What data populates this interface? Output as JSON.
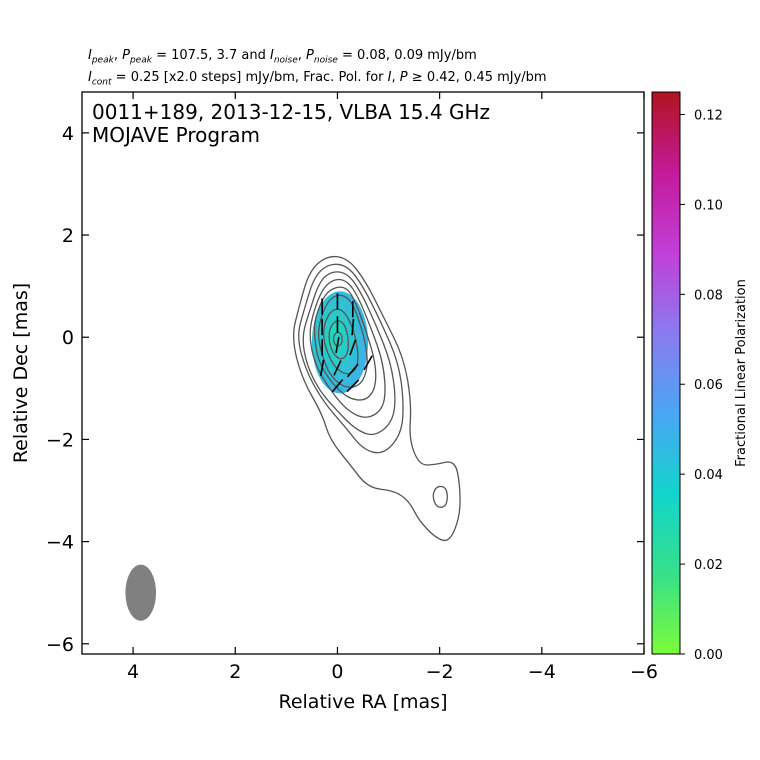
{
  "header": {
    "line1": {
      "i_peak_sym": "I",
      "i_peak_sub": "peak",
      "p_peak_sym": "P",
      "p_peak_sub": "peak",
      "peak_values": "= 107.5, 3.7 and",
      "i_noise_sym": "I",
      "i_noise_sub": "noise",
      "p_noise_sym": "P",
      "p_noise_sub": "noise",
      "noise_values": "= 0.08, 0.09 mJy/bm"
    },
    "line2": {
      "i_cont_sym": "I",
      "i_cont_sub": "cont",
      "cont_text": "= 0.25 [x2.0 steps] mJy/bm, Frac. Pol. for",
      "i_sym": "I",
      "p_sym": "P",
      "geq": "≥",
      "frac_text": "0.42, 0.45 mJy/bm"
    }
  },
  "chart_data": {
    "type": "contour",
    "title_line1": "0011+189, 2013-12-15, VLBA 15.4 GHz",
    "title_line2": "MOJAVE Program",
    "xlabel": "Relative RA [mas]",
    "ylabel": "Relative Dec [mas]",
    "xlim": [
      5,
      -6
    ],
    "ylim": [
      -6.2,
      4.8
    ],
    "x_ticks": [
      4,
      2,
      0,
      -2,
      -4,
      -6
    ],
    "x_tick_labels": [
      "4",
      "2",
      "0",
      "−2",
      "−4",
      "−6"
    ],
    "y_ticks": [
      4,
      2,
      0,
      -2,
      -4,
      -6
    ],
    "y_tick_labels": [
      "4",
      "2",
      "0",
      "−2",
      "−4",
      "−6"
    ],
    "contours": [
      {
        "level": 1,
        "points": [
          [
            0.75,
            0.6
          ],
          [
            0.55,
            1.3
          ],
          [
            0.2,
            1.6
          ],
          [
            -0.2,
            1.55
          ],
          [
            -0.55,
            1.1
          ],
          [
            -0.9,
            0.4
          ],
          [
            -1.3,
            -0.4
          ],
          [
            -1.45,
            -1.3
          ],
          [
            -1.4,
            -2.0
          ],
          [
            -1.6,
            -2.5
          ],
          [
            -1.9,
            -2.5
          ],
          [
            -2.3,
            -2.4
          ],
          [
            -2.4,
            -2.9
          ],
          [
            -2.4,
            -3.5
          ],
          [
            -2.2,
            -4.0
          ],
          [
            -1.95,
            -3.95
          ],
          [
            -1.6,
            -3.6
          ],
          [
            -1.4,
            -3.2
          ],
          [
            -1.1,
            -3.0
          ],
          [
            -0.6,
            -2.95
          ],
          [
            -0.25,
            -2.5
          ],
          [
            0.15,
            -2.0
          ],
          [
            0.3,
            -1.5
          ],
          [
            0.7,
            -0.8
          ],
          [
            0.9,
            0.0
          ]
        ]
      },
      {
        "level": 2,
        "points": [
          [
            -1.95,
            -2.9
          ],
          [
            -2.15,
            -2.95
          ],
          [
            -2.15,
            -3.3
          ],
          [
            -1.95,
            -3.35
          ],
          [
            -1.85,
            -3.1
          ]
        ]
      },
      {
        "level": 3,
        "points": [
          [
            0.65,
            0.55
          ],
          [
            0.45,
            1.2
          ],
          [
            0.15,
            1.45
          ],
          [
            -0.2,
            1.4
          ],
          [
            -0.5,
            1.0
          ],
          [
            -0.85,
            0.3
          ],
          [
            -1.2,
            -0.5
          ],
          [
            -1.3,
            -1.3
          ],
          [
            -1.25,
            -1.9
          ],
          [
            -0.9,
            -2.3
          ],
          [
            -0.5,
            -2.2
          ],
          [
            -0.15,
            -1.75
          ],
          [
            0.25,
            -1.3
          ],
          [
            0.6,
            -0.7
          ],
          [
            0.8,
            0.0
          ]
        ]
      },
      {
        "level": 4,
        "points": [
          [
            0.55,
            0.5
          ],
          [
            0.35,
            1.1
          ],
          [
            0.1,
            1.3
          ],
          [
            -0.2,
            1.25
          ],
          [
            -0.45,
            0.9
          ],
          [
            -0.75,
            0.25
          ],
          [
            -1.05,
            -0.5
          ],
          [
            -1.15,
            -1.25
          ],
          [
            -1.05,
            -1.7
          ],
          [
            -0.7,
            -1.95
          ],
          [
            -0.35,
            -1.8
          ],
          [
            0.0,
            -1.45
          ],
          [
            0.35,
            -1.05
          ],
          [
            0.6,
            -0.55
          ],
          [
            0.7,
            0.0
          ]
        ]
      },
      {
        "level": 5,
        "points": [
          [
            0.5,
            0.4
          ],
          [
            0.3,
            0.95
          ],
          [
            0.05,
            1.15
          ],
          [
            -0.2,
            1.1
          ],
          [
            -0.4,
            0.8
          ],
          [
            -0.65,
            0.2
          ],
          [
            -0.9,
            -0.5
          ],
          [
            -0.95,
            -1.2
          ],
          [
            -0.8,
            -1.5
          ],
          [
            -0.5,
            -1.6
          ],
          [
            -0.15,
            -1.4
          ],
          [
            0.2,
            -0.95
          ],
          [
            0.45,
            -0.5
          ],
          [
            0.55,
            0.0
          ]
        ]
      },
      {
        "level": 6,
        "points": [
          [
            0.45,
            0.35
          ],
          [
            0.25,
            0.85
          ],
          [
            0.0,
            1.0
          ],
          [
            -0.2,
            0.95
          ],
          [
            -0.35,
            0.7
          ],
          [
            -0.55,
            0.15
          ],
          [
            -0.75,
            -0.5
          ],
          [
            -0.75,
            -1.0
          ],
          [
            -0.55,
            -1.25
          ],
          [
            -0.2,
            -1.2
          ],
          [
            0.15,
            -0.85
          ],
          [
            0.38,
            -0.45
          ],
          [
            0.45,
            0.0
          ]
        ]
      },
      {
        "level": 7,
        "points": [
          [
            0.35,
            0.3
          ],
          [
            0.2,
            0.7
          ],
          [
            -0.02,
            0.85
          ],
          [
            -0.25,
            0.75
          ],
          [
            -0.4,
            0.4
          ],
          [
            -0.55,
            -0.1
          ],
          [
            -0.6,
            -0.6
          ],
          [
            -0.45,
            -0.95
          ],
          [
            -0.15,
            -1.0
          ],
          [
            0.15,
            -0.75
          ],
          [
            0.3,
            -0.35
          ],
          [
            0.38,
            0.0
          ]
        ]
      },
      {
        "level": 8,
        "points": [
          [
            0.25,
            0.3
          ],
          [
            0.1,
            0.55
          ],
          [
            -0.1,
            0.55
          ],
          [
            -0.28,
            0.25
          ],
          [
            -0.4,
            -0.2
          ],
          [
            -0.4,
            -0.6
          ],
          [
            -0.2,
            -0.75
          ],
          [
            0.05,
            -0.6
          ],
          [
            0.2,
            -0.3
          ],
          [
            0.28,
            0.0
          ]
        ]
      },
      {
        "level": 9,
        "points": [
          [
            0.15,
            0.2
          ],
          [
            0.0,
            0.35
          ],
          [
            -0.15,
            0.25
          ],
          [
            -0.22,
            -0.05
          ],
          [
            -0.2,
            -0.35
          ],
          [
            -0.05,
            -0.45
          ],
          [
            0.1,
            -0.3
          ],
          [
            0.17,
            -0.05
          ]
        ]
      },
      {
        "level": 10,
        "points": [
          [
            0.07,
            0.05
          ],
          [
            -0.03,
            0.12
          ],
          [
            -0.1,
            0.0
          ],
          [
            -0.08,
            -0.15
          ],
          [
            0.02,
            -0.18
          ],
          [
            0.08,
            -0.08
          ]
        ]
      }
    ],
    "polarization_region": {
      "center": [
        -0.05,
        -0.1
      ],
      "rx": 0.55,
      "ry": 1.0,
      "fractional_pol_core": 0.03,
      "fractional_pol_edge": 0.05
    },
    "evpa_vectors": [
      {
        "x": 0.3,
        "y": 0.6,
        "angle": 0
      },
      {
        "x": 0.0,
        "y": 0.7,
        "angle": 0
      },
      {
        "x": -0.3,
        "y": 0.55,
        "angle": 0
      },
      {
        "x": 0.3,
        "y": 0.2,
        "angle": 0
      },
      {
        "x": 0.0,
        "y": 0.25,
        "angle": 0
      },
      {
        "x": -0.3,
        "y": 0.2,
        "angle": 5
      },
      {
        "x": 0.3,
        "y": -0.2,
        "angle": 0
      },
      {
        "x": 0.0,
        "y": -0.15,
        "angle": 10
      },
      {
        "x": -0.3,
        "y": -0.2,
        "angle": 20
      },
      {
        "x": 0.3,
        "y": -0.6,
        "angle": 10
      },
      {
        "x": 0.0,
        "y": -0.6,
        "angle": 25
      },
      {
        "x": -0.3,
        "y": -0.65,
        "angle": 40
      },
      {
        "x": 0.0,
        "y": -0.95,
        "angle": 40
      },
      {
        "x": -0.3,
        "y": -0.95,
        "angle": 45
      },
      {
        "x": -0.6,
        "y": -0.5,
        "angle": 30
      }
    ],
    "beam": {
      "x": 3.85,
      "y": -5.0,
      "major": 1.1,
      "minor": 0.6,
      "pa": 0
    },
    "colorbar": {
      "label": "Fractional Linear Polarization",
      "min": 0.0,
      "max": 0.125,
      "ticks": [
        0.0,
        0.02,
        0.04,
        0.06,
        0.08,
        0.1,
        0.12
      ],
      "tick_labels": [
        "0.00",
        "0.02",
        "0.04",
        "0.06",
        "0.08",
        "0.10",
        "0.12"
      ],
      "colors": [
        "#7cfc3a",
        "#36e08a",
        "#12d4cc",
        "#4aa6f5",
        "#8a7af0",
        "#c23fd8",
        "#c41a9a",
        "#b0141e"
      ]
    },
    "contour_color": "#555555"
  }
}
